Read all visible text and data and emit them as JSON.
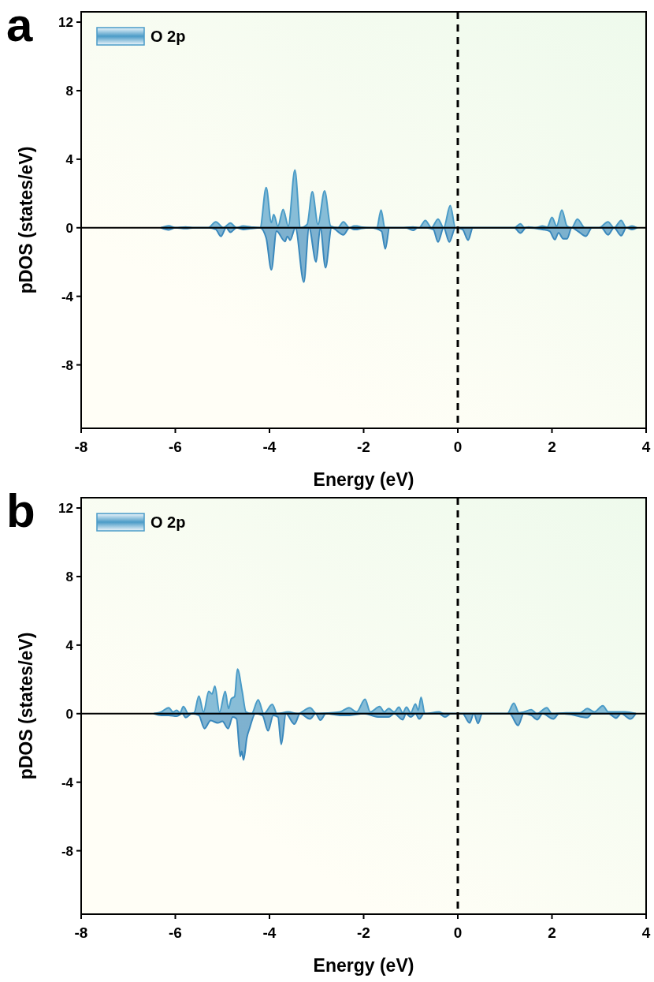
{
  "chart_data": [
    {
      "type": "area",
      "title": "a",
      "xlabel": "Energy (eV)",
      "ylabel": "pDOS (states/eV)",
      "xlim": [
        -8,
        4
      ],
      "xticks": [
        -8,
        -6,
        -4,
        -2,
        0,
        2,
        4
      ],
      "ylim": [
        -11.7,
        12.6
      ],
      "yticks": [
        -8,
        -4,
        0,
        4,
        8,
        12
      ],
      "legend": "top left",
      "grid": false,
      "ref_lines": [
        {
          "axis": "x",
          "value": 0,
          "line_style": "dashed",
          "color": "#000000"
        },
        {
          "axis": "y",
          "value": 0,
          "line_style": "solid",
          "color": "#000000"
        }
      ],
      "series": [
        {
          "name": "O 2p",
          "color": "#4a9bc7",
          "x": [
            -6.3,
            -6.14,
            -6.0,
            -5.78,
            -5.6,
            -5.3,
            -5.14,
            -4.98,
            -4.83,
            -4.7,
            -4.56,
            -4.4,
            -4.2,
            -4.07,
            -3.96,
            -3.91,
            -3.82,
            -3.71,
            -3.6,
            -3.46,
            -3.34,
            -3.2,
            -3.09,
            -2.97,
            -2.83,
            -2.7,
            -2.55,
            -2.43,
            -2.3,
            -2.2,
            -2.14,
            -2.06,
            -1.85,
            -1.72,
            -1.63,
            -1.55,
            -1.2,
            -0.95,
            -0.82,
            -0.69,
            -0.56,
            -0.42,
            -0.3,
            -0.16,
            -0.05,
            0.3,
            1.2,
            1.33,
            1.42,
            1.5,
            1.65,
            1.8,
            1.9,
            2.0,
            2.1,
            2.21,
            2.32,
            2.42,
            2.54,
            2.7,
            3.0,
            3.19,
            3.32,
            3.47,
            3.58,
            3.7,
            3.8
          ],
          "values": [
            0,
            0.12,
            0,
            0.05,
            0,
            0,
            0.35,
            0,
            0.28,
            0,
            0.1,
            0.05,
            0,
            2.35,
            0.3,
            0.77,
            0.1,
            1.07,
            0.1,
            3.37,
            0,
            0.2,
            2.11,
            0.2,
            2.15,
            0.1,
            0,
            0.35,
            0,
            0.1,
            0.1,
            0.05,
            0,
            0,
            1.04,
            0,
            0,
            0.05,
            0,
            0.43,
            0,
            0.51,
            0,
            1.3,
            0,
            0,
            0,
            0.23,
            0,
            0.05,
            0,
            0.1,
            0.05,
            0.61,
            0.1,
            1.04,
            0.1,
            0,
            0.51,
            0,
            0,
            0.35,
            0,
            0.43,
            0,
            0.1,
            0
          ]
        },
        {
          "color": "#3a88bc",
          "x": [
            -6.3,
            -6.14,
            -6.0,
            -5.78,
            -5.6,
            -5.3,
            -5.14,
            -5.03,
            -4.92,
            -4.83,
            -4.7,
            -4.56,
            -4.4,
            -4.2,
            -4.07,
            -3.96,
            -3.85,
            -3.67,
            -3.62,
            -3.56,
            -3.45,
            -3.27,
            -3.16,
            -3.01,
            -2.92,
            -2.81,
            -2.68,
            -2.43,
            -2.3,
            -2.2,
            -2.14,
            -2.06,
            -1.85,
            -1.62,
            -1.54,
            -1.45,
            -1.1,
            -0.95,
            -0.85,
            -0.69,
            -0.52,
            -0.42,
            -0.3,
            -0.18,
            -0.05,
            0.1,
            0.22,
            0.32,
            1.2,
            1.33,
            1.45,
            1.8,
            1.95,
            2.06,
            2.14,
            2.24,
            2.32,
            2.42,
            2.55,
            2.72,
            2.85,
            3.05,
            3.19,
            3.32,
            3.47,
            3.58,
            3.7,
            3.8
          ],
          "values": [
            0,
            -0.12,
            0,
            -0.05,
            0,
            0,
            -0.1,
            -0.5,
            0,
            -0.26,
            0,
            -0.1,
            -0.05,
            0,
            -0.6,
            -2.45,
            -0.2,
            -0.8,
            -0.5,
            -0.72,
            0,
            -3.17,
            0,
            -1.99,
            0,
            -2.33,
            0,
            -0.41,
            0,
            -0.1,
            -0.1,
            -0.05,
            0,
            -0.2,
            -1.23,
            0,
            0,
            -0.15,
            0,
            0,
            -0.1,
            -0.83,
            0,
            -0.83,
            0,
            -0.1,
            -0.72,
            0,
            0,
            -0.31,
            0,
            -0.1,
            -0.2,
            -0.69,
            -0.3,
            -0.64,
            -0.64,
            0,
            -0.2,
            -0.49,
            0,
            0,
            -0.41,
            0,
            -0.46,
            0,
            -0.1,
            0
          ]
        }
      ]
    },
    {
      "type": "area",
      "title": "b",
      "xlabel": "Energy (eV)",
      "ylabel": "pDOS (states/eV)",
      "xlim": [
        -8,
        4
      ],
      "xticks": [
        -8,
        -6,
        -4,
        -2,
        0,
        2,
        4
      ],
      "ylim": [
        -11.7,
        12.6
      ],
      "yticks": [
        -8,
        -4,
        0,
        4,
        8,
        12
      ],
      "legend": "top left",
      "grid": false,
      "ref_lines": [
        {
          "axis": "x",
          "value": 0,
          "line_style": "dashed",
          "color": "#000000"
        },
        {
          "axis": "y",
          "value": 0,
          "line_style": "solid",
          "color": "#000000"
        }
      ],
      "series": [
        {
          "name": "O 2p",
          "color": "#4a9bc7",
          "x": [
            -6.45,
            -6.3,
            -6.14,
            -6.05,
            -5.97,
            -5.9,
            -5.83,
            -5.72,
            -5.6,
            -5.5,
            -5.4,
            -5.29,
            -5.22,
            -5.16,
            -5.06,
            -4.94,
            -4.87,
            -4.81,
            -4.74,
            -4.68,
            -4.58,
            -4.5,
            -4.38,
            -4.24,
            -4.12,
            -3.94,
            -3.84,
            -3.6,
            -3.4,
            -3.14,
            -3.0,
            -2.7,
            -2.5,
            -2.31,
            -2.15,
            -1.97,
            -1.86,
            -1.66,
            -1.56,
            -1.47,
            -1.35,
            -1.25,
            -1.17,
            -1.09,
            -1.0,
            -0.9,
            -0.84,
            -0.78,
            -0.7,
            -0.4,
            -0.3,
            1.05,
            1.19,
            1.3,
            1.4,
            1.56,
            1.68,
            1.89,
            2.0,
            2.3,
            2.6,
            2.75,
            2.9,
            3.08,
            3.2,
            3.55,
            3.78
          ],
          "values": [
            0,
            0.1,
            0.35,
            0.1,
            0.2,
            0.05,
            0.41,
            0,
            0.05,
            1.02,
            0.1,
            1.3,
            1.15,
            1.6,
            0.1,
            1.3,
            0.3,
            0.87,
            1.0,
            2.6,
            1.3,
            0.1,
            0,
            0.81,
            0,
            0.54,
            0,
            0.1,
            0,
            0.35,
            0,
            0.05,
            0.1,
            0.35,
            0.1,
            0.84,
            0.1,
            0.41,
            0.1,
            0.3,
            0.1,
            0.38,
            0.05,
            0.38,
            0.05,
            0.57,
            0.2,
            0.96,
            0,
            0.1,
            0,
            0,
            0.61,
            0.05,
            0.1,
            0.23,
            0,
            0.35,
            0,
            0.05,
            0.05,
            0.3,
            0.1,
            0.46,
            0.1,
            0.1,
            0
          ]
        },
        {
          "color": "#3a88bc",
          "x": [
            -6.45,
            -6.3,
            -6.14,
            -5.97,
            -5.85,
            -5.78,
            -5.65,
            -5.5,
            -5.38,
            -5.25,
            -5.1,
            -5.0,
            -4.88,
            -4.78,
            -4.7,
            -4.62,
            -4.59,
            -4.55,
            -4.48,
            -4.42,
            -4.3,
            -4.15,
            -4.03,
            -3.92,
            -3.82,
            -3.75,
            -3.65,
            -3.47,
            -3.35,
            -3.14,
            -3.02,
            -2.92,
            -2.8,
            -2.5,
            -2.3,
            -2.0,
            -1.66,
            -1.47,
            -1.35,
            -1.17,
            -1.1,
            -1.0,
            -0.9,
            -0.82,
            -0.72,
            -0.4,
            -0.27,
            -0.15,
            0.1,
            0.25,
            0.34,
            0.43,
            0.52,
            1.1,
            1.28,
            1.4,
            1.56,
            1.69,
            1.8,
            2.03,
            2.15,
            2.4,
            2.75,
            2.85,
            3.2,
            3.36,
            3.47,
            3.67,
            3.78
          ],
          "values": [
            0,
            -0.1,
            -0.1,
            -0.15,
            0,
            -0.23,
            0,
            -0.1,
            -0.87,
            -0.4,
            -0.54,
            -0.45,
            -0.87,
            -0.2,
            -0.3,
            -2.5,
            -2.2,
            -2.7,
            -1.4,
            -0.84,
            0,
            -0.1,
            -1.0,
            -0.1,
            -0.2,
            -1.79,
            0,
            -0.61,
            0,
            -0.31,
            0,
            -0.38,
            0,
            -0.1,
            -0.1,
            0,
            -0.2,
            -0.2,
            0,
            -0.35,
            0,
            -0.2,
            0,
            -0.31,
            0,
            0,
            -0.2,
            0,
            0,
            -0.54,
            0,
            -0.57,
            0,
            0,
            -0.69,
            0,
            -0.1,
            -0.35,
            0,
            -0.31,
            0,
            -0.05,
            -0.23,
            0,
            0,
            -0.26,
            0,
            -0.31,
            0
          ]
        }
      ]
    }
  ]
}
